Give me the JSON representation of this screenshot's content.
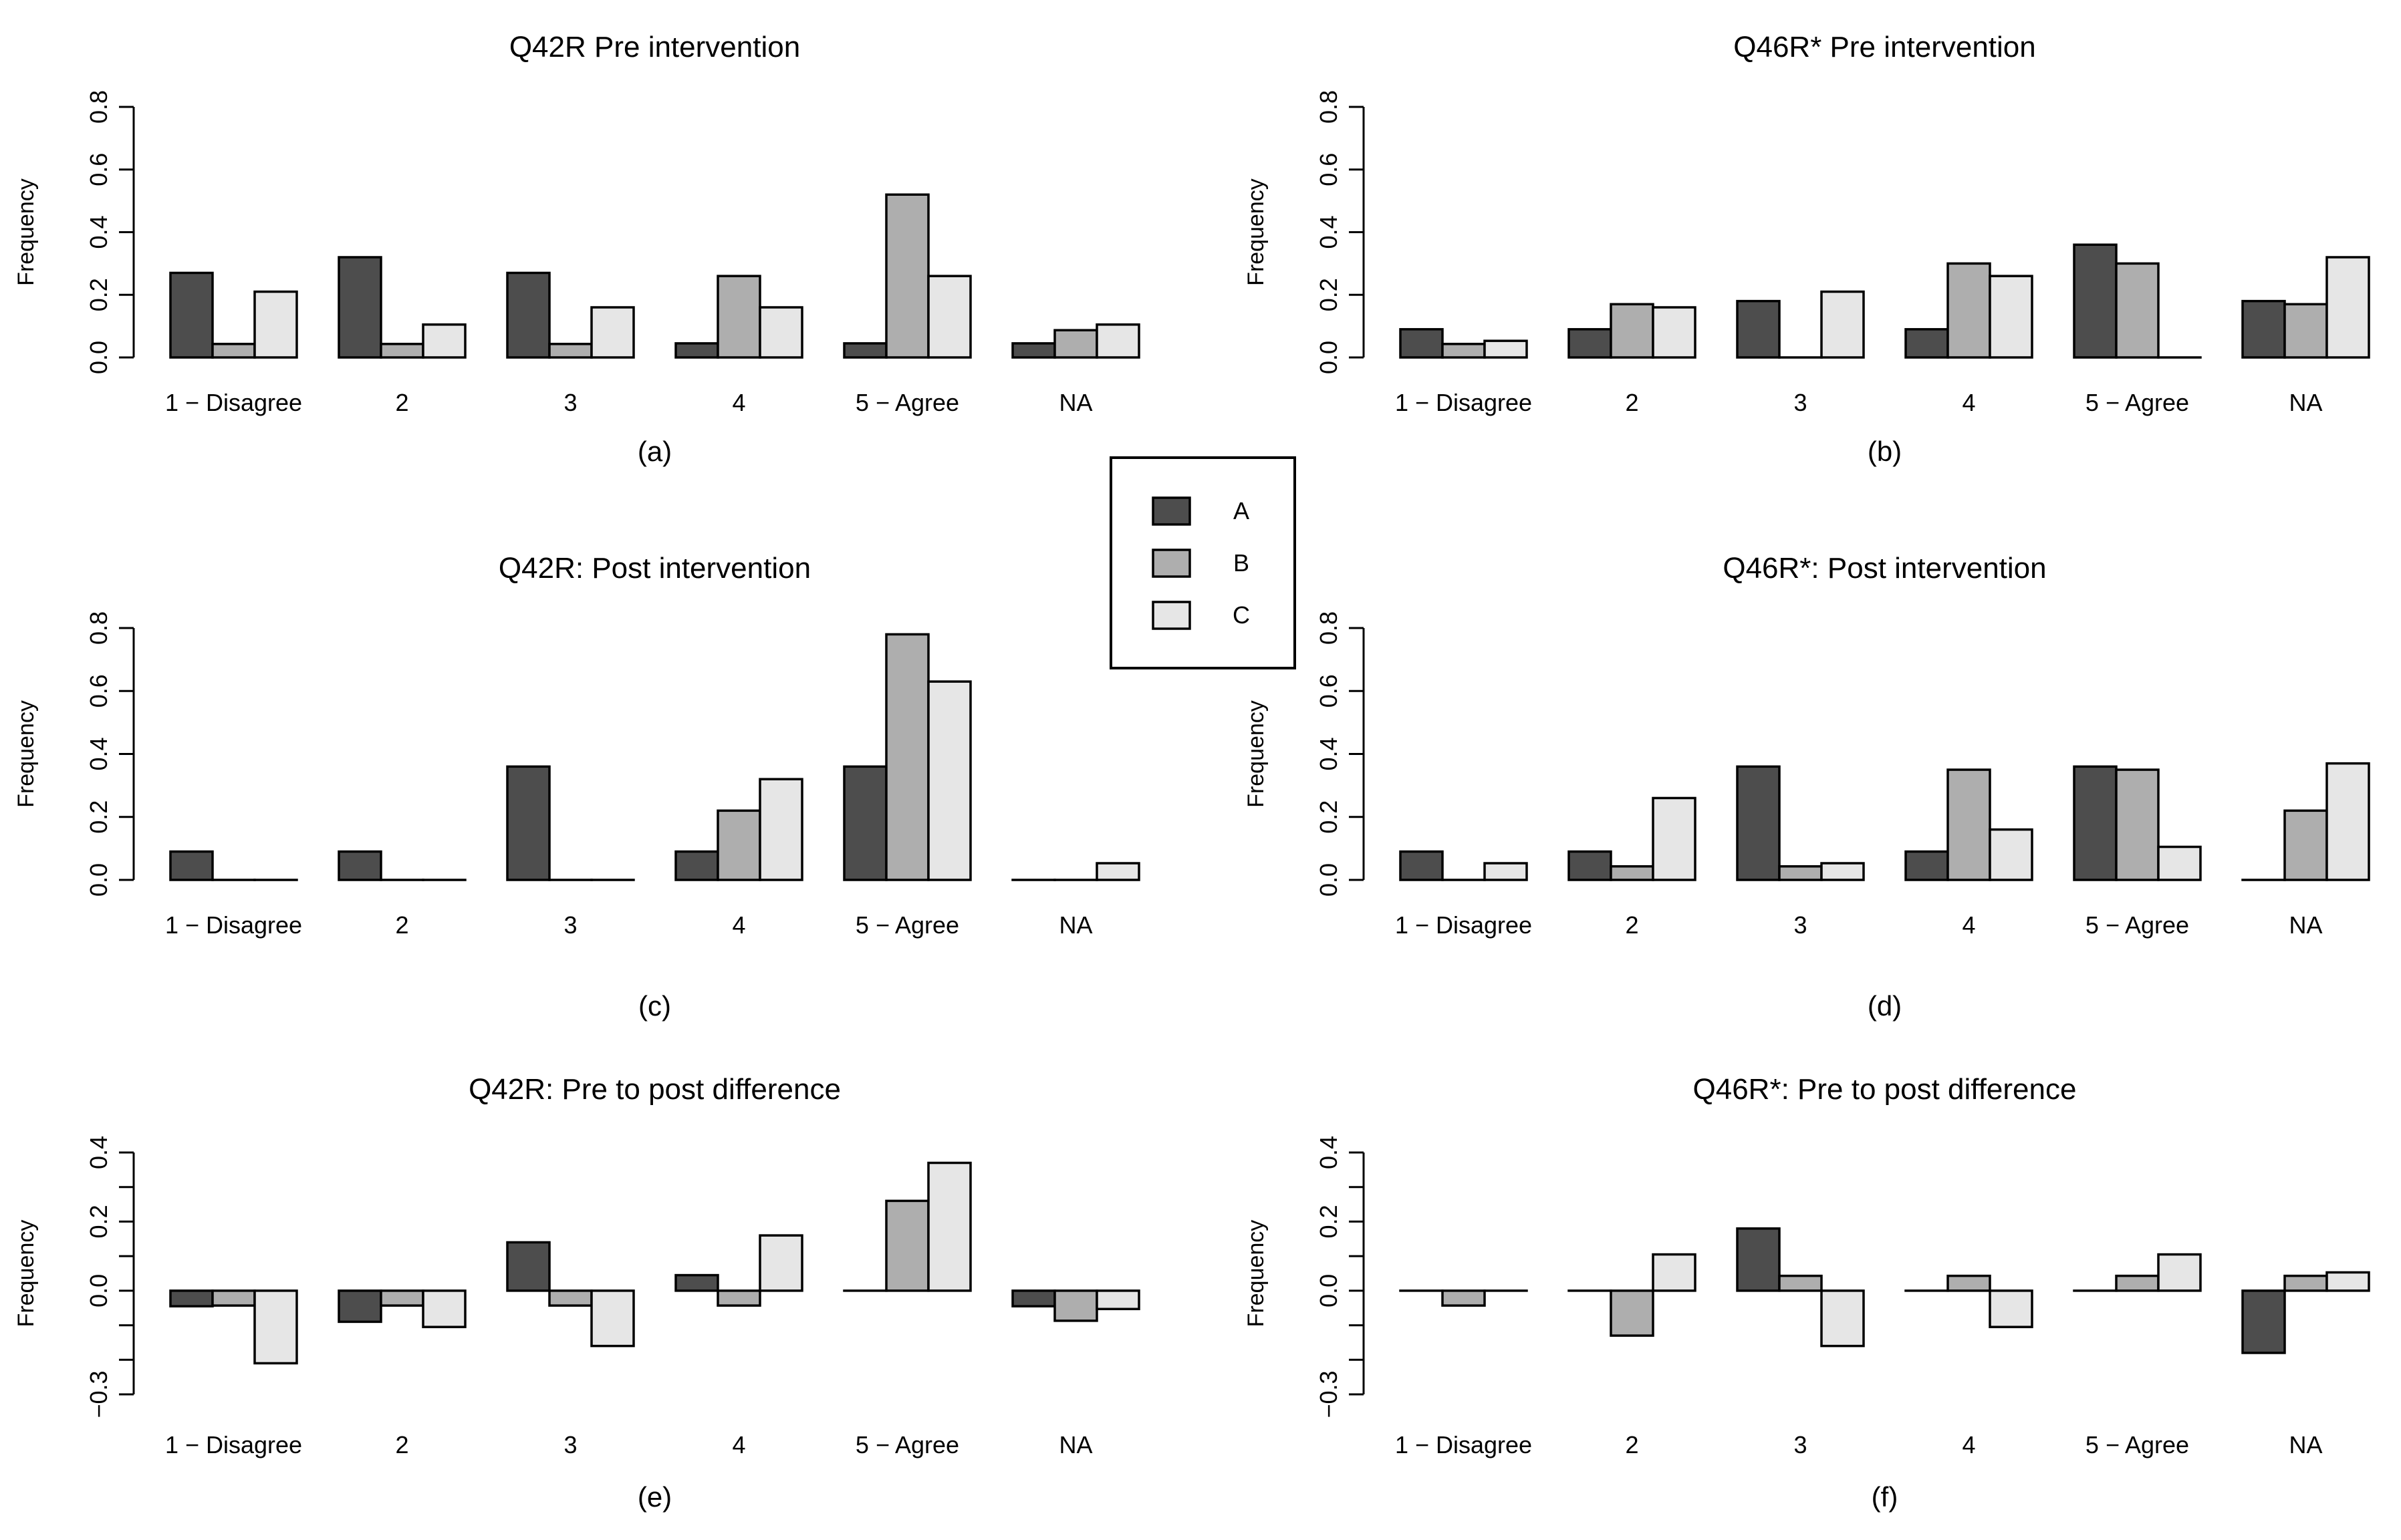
{
  "legend": {
    "entries": [
      {
        "label": "A",
        "color": "#4d4d4d"
      },
      {
        "label": "B",
        "color": "#aeaeae"
      },
      {
        "label": "C",
        "color": "#e6e6e6"
      }
    ]
  },
  "chart_data": [
    {
      "id": "a",
      "type": "bar",
      "title": "Q42R Pre intervention",
      "caption": "(a)",
      "ylabel": "Frequency",
      "xlabel": "",
      "categories": [
        "1 − Disagree",
        "2",
        "3",
        "4",
        "5 − Agree",
        "NA"
      ],
      "ylim": [
        0,
        0.8
      ],
      "yticks": [
        0.0,
        0.2,
        0.4,
        0.6,
        0.8
      ],
      "ytick_labels": [
        "0.0",
        "0.2",
        "0.4",
        "0.6",
        "0.8"
      ],
      "series": [
        {
          "name": "A",
          "values": [
            0.27,
            0.32,
            0.27,
            0.045,
            0.045,
            0.045
          ]
        },
        {
          "name": "B",
          "values": [
            0.043,
            0.043,
            0.043,
            0.26,
            0.52,
            0.087
          ]
        },
        {
          "name": "C",
          "values": [
            0.21,
            0.105,
            0.16,
            0.16,
            0.26,
            0.105
          ]
        }
      ]
    },
    {
      "id": "b",
      "type": "bar",
      "title": "Q46R* Pre intervention",
      "caption": "(b)",
      "ylabel": "Frequency",
      "xlabel": "",
      "categories": [
        "1 − Disagree",
        "2",
        "3",
        "4",
        "5 − Agree",
        "NA"
      ],
      "ylim": [
        0,
        0.8
      ],
      "yticks": [
        0.0,
        0.2,
        0.4,
        0.6,
        0.8
      ],
      "ytick_labels": [
        "0.0",
        "0.2",
        "0.4",
        "0.6",
        "0.8"
      ],
      "series": [
        {
          "name": "A",
          "values": [
            0.09,
            0.09,
            0.18,
            0.09,
            0.36,
            0.18
          ]
        },
        {
          "name": "B",
          "values": [
            0.043,
            0.17,
            0.0,
            0.3,
            0.3,
            0.17
          ]
        },
        {
          "name": "C",
          "values": [
            0.053,
            0.16,
            0.21,
            0.26,
            0.0,
            0.32
          ]
        }
      ]
    },
    {
      "id": "c",
      "type": "bar",
      "title": "Q42R: Post intervention",
      "caption": "(c)",
      "ylabel": "Frequency",
      "xlabel": "",
      "categories": [
        "1 − Disagree",
        "2",
        "3",
        "4",
        "5 − Agree",
        "NA"
      ],
      "ylim": [
        0,
        0.8
      ],
      "yticks": [
        0.0,
        0.2,
        0.4,
        0.6,
        0.8
      ],
      "ytick_labels": [
        "0.0",
        "0.2",
        "0.4",
        "0.6",
        "0.8"
      ],
      "series": [
        {
          "name": "A",
          "values": [
            0.09,
            0.09,
            0.36,
            0.09,
            0.36,
            0.0
          ]
        },
        {
          "name": "B",
          "values": [
            0.0,
            0.0,
            0.0,
            0.22,
            0.78,
            0.0
          ]
        },
        {
          "name": "C",
          "values": [
            0.0,
            0.0,
            0.0,
            0.32,
            0.63,
            0.053
          ]
        }
      ]
    },
    {
      "id": "d",
      "type": "bar",
      "title": "Q46R*: Post intervention",
      "caption": "(d)",
      "ylabel": "Frequency",
      "xlabel": "",
      "categories": [
        "1 − Disagree",
        "2",
        "3",
        "4",
        "5 − Agree",
        "NA"
      ],
      "ylim": [
        0,
        0.8
      ],
      "yticks": [
        0.0,
        0.2,
        0.4,
        0.6,
        0.8
      ],
      "ytick_labels": [
        "0.0",
        "0.2",
        "0.4",
        "0.6",
        "0.8"
      ],
      "series": [
        {
          "name": "A",
          "values": [
            0.09,
            0.09,
            0.36,
            0.09,
            0.36,
            0.0
          ]
        },
        {
          "name": "B",
          "values": [
            0.0,
            0.043,
            0.043,
            0.35,
            0.35,
            0.22
          ]
        },
        {
          "name": "C",
          "values": [
            0.053,
            0.26,
            0.053,
            0.16,
            0.105,
            0.37
          ]
        }
      ]
    },
    {
      "id": "e",
      "type": "bar",
      "title": "Q42R: Pre to post difference",
      "caption": "(e)",
      "ylabel": "Frequency",
      "xlabel": "",
      "categories": [
        "1 − Disagree",
        "2",
        "3",
        "4",
        "5 − Agree",
        "NA"
      ],
      "ylim": [
        -0.3,
        0.4
      ],
      "yticks": [
        -0.3,
        -0.2,
        -0.1,
        0.0,
        0.1,
        0.2,
        0.3,
        0.4
      ],
      "ytick_labels": [
        "−0.3",
        "",
        "",
        "0.0",
        "",
        "0.2",
        "",
        "0.4"
      ],
      "series": [
        {
          "name": "A",
          "values": [
            -0.045,
            -0.09,
            0.14,
            0.045,
            0.0,
            -0.045
          ]
        },
        {
          "name": "B",
          "values": [
            -0.043,
            -0.043,
            -0.043,
            -0.043,
            0.26,
            -0.087
          ]
        },
        {
          "name": "C",
          "values": [
            -0.21,
            -0.105,
            -0.16,
            0.16,
            0.37,
            -0.053
          ]
        }
      ]
    },
    {
      "id": "f",
      "type": "bar",
      "title": "Q46R*: Pre to post difference",
      "caption": "(f)",
      "ylabel": "Frequency",
      "xlabel": "",
      "categories": [
        "1 − Disagree",
        "2",
        "3",
        "4",
        "5 − Agree",
        "NA"
      ],
      "ylim": [
        -0.3,
        0.4
      ],
      "yticks": [
        -0.3,
        -0.2,
        -0.1,
        0.0,
        0.1,
        0.2,
        0.3,
        0.4
      ],
      "ytick_labels": [
        "−0.3",
        "",
        "",
        "0.0",
        "",
        "0.2",
        "",
        "0.4"
      ],
      "series": [
        {
          "name": "A",
          "values": [
            0.0,
            0.0,
            0.18,
            0.0,
            0.0,
            -0.18
          ]
        },
        {
          "name": "B",
          "values": [
            -0.043,
            -0.13,
            0.043,
            0.043,
            0.043,
            0.043
          ]
        },
        {
          "name": "C",
          "values": [
            0.0,
            0.105,
            -0.16,
            -0.105,
            0.105,
            0.053
          ]
        }
      ]
    }
  ]
}
